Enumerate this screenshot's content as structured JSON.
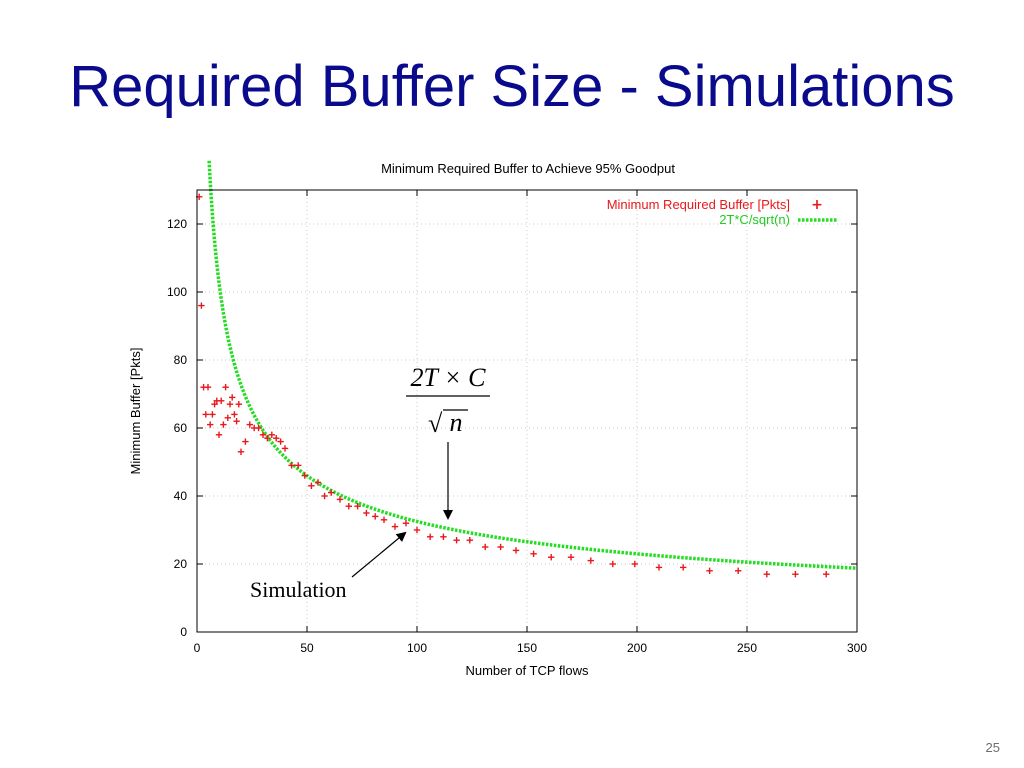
{
  "slide": {
    "title": "Required Buffer Size - Simulations",
    "page_number": "25"
  },
  "colors": {
    "title": "#0a0a8c",
    "series_sim": "#e8191c",
    "series_model": "#22dd22",
    "grid": "#c8c8c8"
  },
  "chart_data": {
    "type": "scatter",
    "title": "Minimum Required Buffer to Achieve 95% Goodput",
    "xlabel": "Number of TCP flows",
    "ylabel": "Minimum Buffer [Pkts]",
    "xlim": [
      0,
      300
    ],
    "ylim": [
      0,
      130
    ],
    "x_ticks": [
      0,
      50,
      100,
      150,
      200,
      250,
      300
    ],
    "y_ticks": [
      0,
      20,
      40,
      60,
      80,
      100,
      120
    ],
    "grid": true,
    "legend_position": "top-right",
    "series": [
      {
        "name": "Minimum Required Buffer [Pkts]",
        "marker": "+",
        "color": "#e8191c",
        "points": [
          [
            1,
            128
          ],
          [
            2,
            96
          ],
          [
            3,
            72
          ],
          [
            4,
            64
          ],
          [
            5,
            72
          ],
          [
            6,
            61
          ],
          [
            7,
            64
          ],
          [
            8,
            67
          ],
          [
            9,
            68
          ],
          [
            10,
            58
          ],
          [
            11,
            68
          ],
          [
            12,
            61
          ],
          [
            13,
            72
          ],
          [
            14,
            63
          ],
          [
            15,
            67
          ],
          [
            16,
            69
          ],
          [
            17,
            64
          ],
          [
            18,
            62
          ],
          [
            19,
            67
          ],
          [
            20,
            53
          ],
          [
            22,
            56
          ],
          [
            24,
            61
          ],
          [
            26,
            60
          ],
          [
            28,
            60
          ],
          [
            30,
            58
          ],
          [
            32,
            57
          ],
          [
            34,
            58
          ],
          [
            36,
            57
          ],
          [
            38,
            56
          ],
          [
            40,
            54
          ],
          [
            43,
            49
          ],
          [
            46,
            49
          ],
          [
            49,
            46
          ],
          [
            52,
            43
          ],
          [
            55,
            44
          ],
          [
            58,
            40
          ],
          [
            61,
            41
          ],
          [
            65,
            39
          ],
          [
            69,
            37
          ],
          [
            73,
            37
          ],
          [
            77,
            35
          ],
          [
            81,
            34
          ],
          [
            85,
            33
          ],
          [
            90,
            31
          ],
          [
            95,
            32
          ],
          [
            100,
            30
          ],
          [
            106,
            28
          ],
          [
            112,
            28
          ],
          [
            118,
            27
          ],
          [
            124,
            27
          ],
          [
            131,
            25
          ],
          [
            138,
            25
          ],
          [
            145,
            24
          ],
          [
            153,
            23
          ],
          [
            161,
            22
          ],
          [
            170,
            22
          ],
          [
            179,
            21
          ],
          [
            189,
            20
          ],
          [
            199,
            20
          ],
          [
            210,
            19
          ],
          [
            221,
            19
          ],
          [
            233,
            18
          ],
          [
            246,
            18
          ],
          [
            259,
            17
          ],
          [
            272,
            17
          ],
          [
            286,
            17
          ]
        ]
      },
      {
        "name": "2T*C/sqrt(n)",
        "style": "dotted-line",
        "color": "#22dd22",
        "formula_constant": 325,
        "x_range": [
          5.5,
          300
        ]
      }
    ],
    "annotations": [
      {
        "label": "Simulation",
        "arrow_to": [
          95,
          29.5
        ]
      },
      {
        "formula_numerator": "2T × C",
        "formula_denominator": "n",
        "formula_radical": "√",
        "arrow_to": [
          113,
          33.5
        ]
      }
    ]
  }
}
